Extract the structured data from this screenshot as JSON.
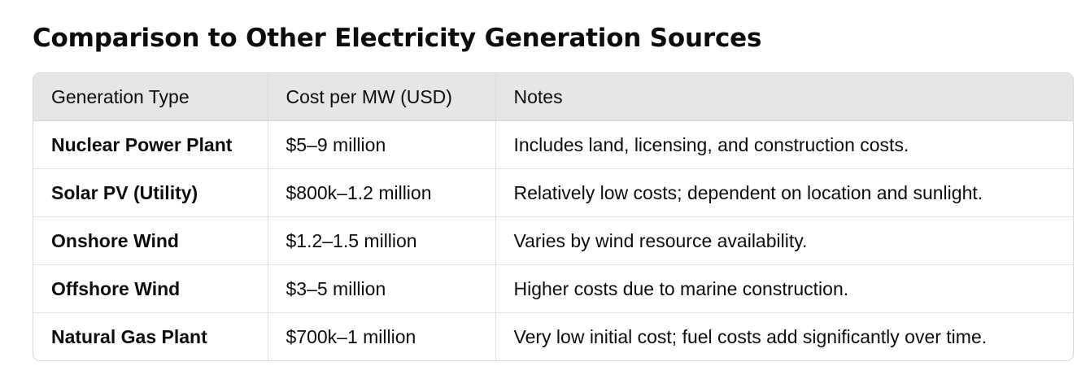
{
  "heading": "Comparison to Other Electricity Generation Sources",
  "table": {
    "columns": [
      "Generation Type",
      "Cost per MW (USD)",
      "Notes"
    ],
    "rows": [
      {
        "type": "Nuclear Power Plant",
        "cost": "$5–9 million",
        "notes": "Includes land, licensing, and construction costs."
      },
      {
        "type": "Solar PV (Utility)",
        "cost": "$800k–1.2 million",
        "notes": "Relatively low costs; dependent on location and sunlight."
      },
      {
        "type": "Onshore Wind",
        "cost": "$1.2–1.5 million",
        "notes": "Varies by wind resource availability."
      },
      {
        "type": "Offshore Wind",
        "cost": "$3–5 million",
        "notes": "Higher costs due to marine construction."
      },
      {
        "type": "Natural Gas Plant",
        "cost": "$700k–1 million",
        "notes": "Very low initial cost; fuel costs add significantly over time."
      }
    ]
  }
}
